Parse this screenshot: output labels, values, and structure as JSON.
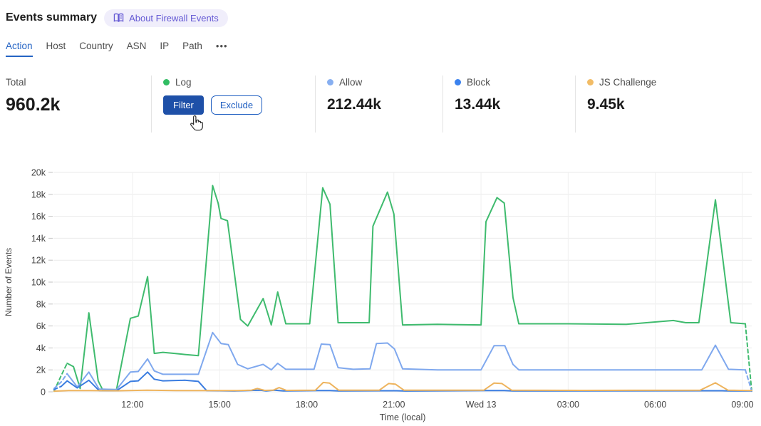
{
  "header": {
    "title": "Events summary",
    "about_badge_label": "About Firewall Events"
  },
  "tabs": {
    "items": [
      {
        "label": "Action",
        "active": true
      },
      {
        "label": "Host",
        "active": false
      },
      {
        "label": "Country",
        "active": false
      },
      {
        "label": "ASN",
        "active": false
      },
      {
        "label": "IP",
        "active": false
      },
      {
        "label": "Path",
        "active": false
      }
    ],
    "more_label": "•••"
  },
  "stats": {
    "total": {
      "label": "Total",
      "value": "960.2k"
    },
    "log": {
      "label": "Log",
      "dot_color": "#31bd63",
      "filter_label": "Filter",
      "exclude_label": "Exclude"
    },
    "allow": {
      "label": "Allow",
      "value": "212.44k",
      "dot_color": "#87aff1"
    },
    "block": {
      "label": "Block",
      "value": "13.44k",
      "dot_color": "#3b82ee"
    },
    "js_challenge": {
      "label": "JS Challenge",
      "value": "9.45k",
      "dot_color": "#f2bc66"
    }
  },
  "palette": {
    "accent_blue": "#2564c4",
    "button_blue": "#1e50a8",
    "badge_purple": "#6459d4",
    "grid_gray": "#e9e9e9"
  },
  "chart_data": {
    "type": "line",
    "title": "",
    "xlabel": "Time (local)",
    "ylabel": "Number of Events",
    "x_unit": "hours, local time; 24 = midnight Wed 13",
    "x_range": [
      9.28,
      33.32
    ],
    "y_range": [
      0,
      20
    ],
    "grid": true,
    "legend_position": "stats-row-above",
    "yticks": [
      [
        0,
        "0"
      ],
      [
        2,
        "2k"
      ],
      [
        4,
        "4k"
      ],
      [
        6,
        "6k"
      ],
      [
        8,
        "8k"
      ],
      [
        10,
        "10k"
      ],
      [
        12,
        "12k"
      ],
      [
        14,
        "14k"
      ],
      [
        16,
        "16k"
      ],
      [
        18,
        "18k"
      ],
      [
        20,
        "20k"
      ]
    ],
    "xticks": [
      [
        12,
        "12:00"
      ],
      [
        15,
        "15:00"
      ],
      [
        18,
        "18:00"
      ],
      [
        21,
        "21:00"
      ],
      [
        24,
        "Wed 13"
      ],
      [
        27,
        "03:00"
      ],
      [
        30,
        "06:00"
      ],
      [
        33,
        "09:00"
      ]
    ],
    "unit": "k events",
    "series": [
      {
        "name": "Log",
        "color": "#3fbb6e",
        "dash_head": 2,
        "dash_tail": 1,
        "points": [
          [
            9.3,
            0.05
          ],
          [
            9.55,
            1.5
          ],
          [
            9.75,
            2.6
          ],
          [
            9.97,
            2.3
          ],
          [
            10.2,
            0.3
          ],
          [
            10.5,
            7.2
          ],
          [
            10.82,
            1.0
          ],
          [
            10.97,
            0.2
          ],
          [
            11.45,
            0.2
          ],
          [
            11.93,
            6.7
          ],
          [
            12.2,
            6.9
          ],
          [
            12.52,
            10.5
          ],
          [
            12.75,
            3.5
          ],
          [
            13.05,
            3.6
          ],
          [
            13.45,
            3.5
          ],
          [
            13.8,
            3.4
          ],
          [
            14.27,
            3.3
          ],
          [
            14.76,
            18.8
          ],
          [
            14.95,
            17.2
          ],
          [
            15.05,
            15.8
          ],
          [
            15.27,
            15.6
          ],
          [
            15.72,
            6.6
          ],
          [
            15.97,
            6.0
          ],
          [
            16.5,
            8.5
          ],
          [
            16.78,
            6.1
          ],
          [
            17.0,
            9.1
          ],
          [
            17.28,
            6.2
          ],
          [
            18.1,
            6.2
          ],
          [
            18.55,
            18.6
          ],
          [
            18.8,
            17.1
          ],
          [
            19.08,
            6.3
          ],
          [
            20.15,
            6.3
          ],
          [
            20.28,
            15.1
          ],
          [
            20.78,
            18.2
          ],
          [
            21.0,
            16.2
          ],
          [
            21.3,
            6.1
          ],
          [
            22.5,
            6.15
          ],
          [
            24.0,
            6.1
          ],
          [
            24.17,
            15.5
          ],
          [
            24.55,
            17.7
          ],
          [
            24.8,
            17.2
          ],
          [
            25.1,
            8.6
          ],
          [
            25.3,
            6.2
          ],
          [
            27.0,
            6.2
          ],
          [
            29.0,
            6.15
          ],
          [
            30.62,
            6.5
          ],
          [
            31.05,
            6.3
          ],
          [
            31.5,
            6.3
          ],
          [
            32.07,
            17.5
          ],
          [
            32.6,
            6.3
          ],
          [
            33.1,
            6.2
          ],
          [
            33.32,
            0.05
          ]
        ]
      },
      {
        "name": "Allow",
        "color": "#7fa8ee",
        "dash_head": 2,
        "dash_tail": 1,
        "points": [
          [
            9.3,
            0.3
          ],
          [
            9.55,
            0.9
          ],
          [
            9.75,
            1.65
          ],
          [
            10.1,
            0.45
          ],
          [
            10.5,
            1.8
          ],
          [
            10.85,
            0.25
          ],
          [
            11.45,
            0.2
          ],
          [
            11.93,
            1.8
          ],
          [
            12.2,
            1.85
          ],
          [
            12.52,
            3.0
          ],
          [
            12.75,
            1.9
          ],
          [
            13.05,
            1.6
          ],
          [
            13.8,
            1.6
          ],
          [
            14.27,
            1.6
          ],
          [
            14.76,
            5.4
          ],
          [
            15.05,
            4.4
          ],
          [
            15.3,
            4.3
          ],
          [
            15.62,
            2.5
          ],
          [
            15.97,
            2.1
          ],
          [
            16.5,
            2.5
          ],
          [
            16.78,
            2.0
          ],
          [
            17.0,
            2.6
          ],
          [
            17.28,
            2.05
          ],
          [
            18.25,
            2.05
          ],
          [
            18.5,
            4.35
          ],
          [
            18.8,
            4.3
          ],
          [
            19.08,
            2.2
          ],
          [
            19.6,
            2.05
          ],
          [
            20.18,
            2.1
          ],
          [
            20.4,
            4.4
          ],
          [
            20.78,
            4.45
          ],
          [
            21.02,
            3.9
          ],
          [
            21.3,
            2.1
          ],
          [
            22.5,
            2.0
          ],
          [
            24.0,
            2.0
          ],
          [
            24.45,
            4.2
          ],
          [
            24.82,
            4.2
          ],
          [
            25.1,
            2.5
          ],
          [
            25.3,
            2.0
          ],
          [
            27.5,
            2.0
          ],
          [
            30.0,
            2.0
          ],
          [
            31.6,
            2.0
          ],
          [
            32.07,
            4.25
          ],
          [
            32.52,
            2.05
          ],
          [
            33.1,
            2.0
          ],
          [
            33.32,
            0.05
          ]
        ]
      },
      {
        "name": "Block",
        "color": "#3b7de0",
        "dash_head": 1,
        "dash_tail": 0,
        "points": [
          [
            9.3,
            0.2
          ],
          [
            9.55,
            0.5
          ],
          [
            9.75,
            1.0
          ],
          [
            10.1,
            0.35
          ],
          [
            10.5,
            1.05
          ],
          [
            10.85,
            0.12
          ],
          [
            11.45,
            0.1
          ],
          [
            11.93,
            0.95
          ],
          [
            12.2,
            1.0
          ],
          [
            12.52,
            1.8
          ],
          [
            12.75,
            1.15
          ],
          [
            13.05,
            1.0
          ],
          [
            13.8,
            1.05
          ],
          [
            14.27,
            0.95
          ],
          [
            14.55,
            0.12
          ],
          [
            15.5,
            0.08
          ],
          [
            16.4,
            0.15
          ],
          [
            16.6,
            0.08
          ],
          [
            16.9,
            0.15
          ],
          [
            17.2,
            0.08
          ],
          [
            18.4,
            0.12
          ],
          [
            18.8,
            0.12
          ],
          [
            19.1,
            0.08
          ],
          [
            20.6,
            0.1
          ],
          [
            21.1,
            0.1
          ],
          [
            21.4,
            0.07
          ],
          [
            24.2,
            0.12
          ],
          [
            24.8,
            0.12
          ],
          [
            25.1,
            0.08
          ],
          [
            31.6,
            0.1
          ],
          [
            32.3,
            0.1
          ],
          [
            32.6,
            0.08
          ],
          [
            33.32,
            0.08
          ]
        ]
      },
      {
        "name": "JS Challenge",
        "color": "#eeb45e",
        "dash_head": 0,
        "dash_tail": 0,
        "points": [
          [
            9.3,
            0.06
          ],
          [
            9.8,
            0.12
          ],
          [
            10.5,
            0.12
          ],
          [
            11.5,
            0.1
          ],
          [
            12.5,
            0.15
          ],
          [
            13.5,
            0.12
          ],
          [
            14.76,
            0.12
          ],
          [
            15.6,
            0.12
          ],
          [
            16.1,
            0.15
          ],
          [
            16.3,
            0.3
          ],
          [
            16.55,
            0.13
          ],
          [
            16.85,
            0.15
          ],
          [
            17.05,
            0.38
          ],
          [
            17.3,
            0.13
          ],
          [
            18.3,
            0.15
          ],
          [
            18.57,
            0.85
          ],
          [
            18.78,
            0.8
          ],
          [
            19.1,
            0.14
          ],
          [
            20.5,
            0.15
          ],
          [
            20.82,
            0.75
          ],
          [
            21.05,
            0.7
          ],
          [
            21.35,
            0.14
          ],
          [
            24.1,
            0.15
          ],
          [
            24.45,
            0.8
          ],
          [
            24.72,
            0.75
          ],
          [
            25.05,
            0.15
          ],
          [
            27.5,
            0.13
          ],
          [
            31.55,
            0.15
          ],
          [
            32.07,
            0.82
          ],
          [
            32.5,
            0.15
          ],
          [
            33.32,
            0.12
          ]
        ]
      }
    ]
  }
}
